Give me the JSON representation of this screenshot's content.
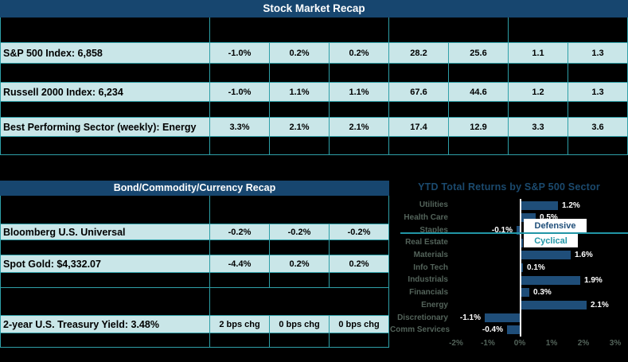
{
  "colors": {
    "band_navy": "#17466F",
    "bar_blue": "#1F4E79",
    "cell_cyan": "#C9E6E8",
    "grid_teal": "#2E9FA7",
    "cyclical_teal": "#2196A6",
    "chart_label_gray": "#53635A",
    "background": "#000000"
  },
  "stock_recap": {
    "title": "Stock Market Recap",
    "rows": [
      {
        "label": "S&P 500 Index: 6,858",
        "values": [
          "-1.0%",
          "0.2%",
          "0.2%",
          "28.2",
          "25.6",
          "1.1",
          "1.3"
        ]
      },
      {
        "label": "Russell 2000 Index: 6,234",
        "values": [
          "-1.0%",
          "1.1%",
          "1.1%",
          "67.6",
          "44.6",
          "1.2",
          "1.3"
        ]
      },
      {
        "label": "Best Performing Sector (weekly): Energy",
        "values": [
          "3.3%",
          "2.1%",
          "2.1%",
          "17.4",
          "12.9",
          "3.3",
          "3.6"
        ]
      }
    ]
  },
  "bond_recap": {
    "title": "Bond/Commodity/Currency Recap",
    "rows": [
      {
        "label": "Bloomberg U.S. Universal",
        "values": [
          "-0.2%",
          "-0.2%",
          "-0.2%"
        ]
      },
      {
        "label": "Spot Gold: $4,332.07",
        "values": [
          "-4.4%",
          "0.2%",
          "0.2%"
        ]
      },
      {
        "label": "2-year U.S. Treasury Yield: 3.48%",
        "values": [
          "2 bps chg",
          "0 bps chg",
          "0 bps chg"
        ]
      }
    ]
  },
  "chart_data": {
    "type": "bar",
    "orientation": "horizontal",
    "title": "YTD Total Returns by S&P 500 Sector",
    "categories": [
      "Utilities",
      "Health Care",
      "Staples",
      "Real Estate",
      "Materials",
      "Info Tech",
      "Industrials",
      "Financials",
      "Energy",
      "Discretionary",
      "Comm Services"
    ],
    "values": [
      1.2,
      0.5,
      -0.1,
      0.1,
      1.6,
      0.1,
      1.9,
      0.3,
      2.1,
      -1.1,
      -0.4
    ],
    "value_labels": [
      "1.2%",
      "0.5%",
      "-0.1%",
      "0.1%",
      "1.6%",
      "0.1%",
      "1.9%",
      "0.3%",
      "2.1%",
      "-1.1%",
      "-0.4%"
    ],
    "x_ticks": [
      "-2%",
      "-1%",
      "0%",
      "1%",
      "2%",
      "3%"
    ],
    "xlim": [
      -2.1,
      3.4
    ],
    "xlabel": "",
    "ylabel": "",
    "grid": false,
    "legend": [
      {
        "label": "Defensive",
        "color": "#1F4E79"
      },
      {
        "label": "Cyclical",
        "color": "#2196A6"
      }
    ],
    "bar_color": "#1F4E79",
    "annotation": "teal separator line between defensive sectors (top 3) and cyclical sectors"
  }
}
